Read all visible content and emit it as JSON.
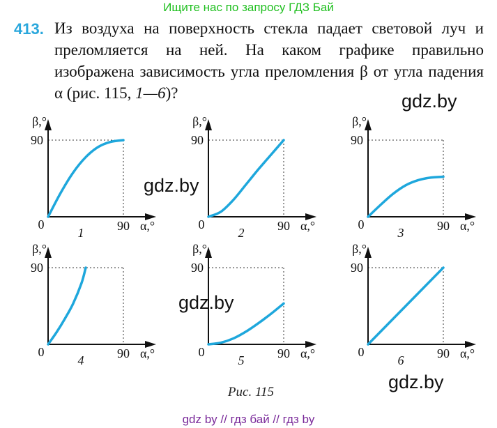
{
  "banner": "Ищите нас по запросу ГДЗ Бай",
  "problem": {
    "number": "413.",
    "text_main": "Из воздуха на поверхность стекла падает световой луч и преломляется на ней. На каком графике правильно изображена зависимость угла преломления β от угла падения α (рис. 115, ",
    "text_italic": "1—6",
    "text_end": ")?"
  },
  "watermarks": [
    "gdz.by",
    "gdz.by",
    "gdz.by",
    "gdz.by"
  ],
  "graph_labels": {
    "y_axis": "β,°",
    "x_axis": "α,°",
    "tick": "90",
    "origin": "0"
  },
  "curve_color": "#1ea7dc",
  "chart_data": [
    {
      "type": "line",
      "label": "1",
      "shape": "concave increasing, saturating",
      "x": [
        0,
        15,
        30,
        45,
        60,
        75,
        90
      ],
      "y": [
        0,
        28,
        52,
        70,
        82,
        88,
        90
      ],
      "xlim": [
        0,
        90
      ],
      "ylim": [
        0,
        90
      ]
    },
    {
      "type": "line",
      "label": "2",
      "shape": "convex increasing",
      "x": [
        0,
        15,
        30,
        45,
        60,
        75,
        90
      ],
      "y": [
        0,
        6,
        20,
        38,
        56,
        73,
        90
      ],
      "xlim": [
        0,
        90
      ],
      "ylim": [
        0,
        90
      ]
    },
    {
      "type": "line",
      "label": "3",
      "shape": "concave increasing, below 90",
      "x": [
        0,
        15,
        30,
        45,
        60,
        75,
        90
      ],
      "y": [
        0,
        14,
        27,
        37,
        43,
        46,
        47
      ],
      "xlim": [
        0,
        90
      ],
      "ylim": [
        0,
        90
      ]
    },
    {
      "type": "line",
      "label": "4",
      "shape": "convex increasing, reaches 90 early",
      "x": [
        0,
        10,
        20,
        30,
        40,
        45
      ],
      "y": [
        0,
        14,
        30,
        48,
        72,
        90
      ],
      "xlim": [
        0,
        90
      ],
      "ylim": [
        0,
        90
      ]
    },
    {
      "type": "line",
      "label": "5",
      "shape": "convex increasing, below 90",
      "x": [
        0,
        15,
        30,
        45,
        60,
        75,
        90
      ],
      "y": [
        0,
        2,
        7,
        15,
        25,
        36,
        48
      ],
      "xlim": [
        0,
        90
      ],
      "ylim": [
        0,
        90
      ]
    },
    {
      "type": "line",
      "label": "6",
      "shape": "linear",
      "x": [
        0,
        90
      ],
      "y": [
        0,
        90
      ],
      "xlim": [
        0,
        90
      ],
      "ylim": [
        0,
        90
      ]
    }
  ],
  "caption": "Рис. 115",
  "footer": "gdz by  //  гдз бай  //  гдз by"
}
